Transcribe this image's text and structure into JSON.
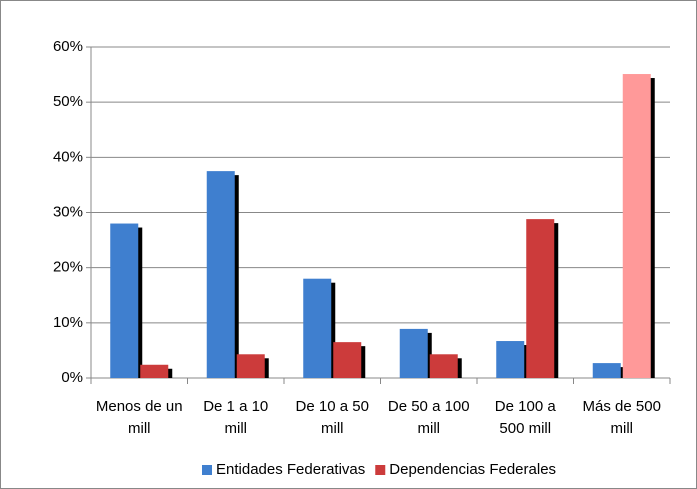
{
  "chart_data": {
    "type": "bar",
    "categories": [
      "Menos de un mill",
      "De 1 a 10 mill",
      "De 10 a 50 mill",
      "De 50 a 100 mill",
      "De 100 a 500 mill",
      "Más de 500 mill"
    ],
    "series": [
      {
        "name": "Entidades Federativas",
        "color": "#3f7fcf",
        "values": [
          28,
          37.5,
          18,
          8.9,
          6.7,
          2.7
        ]
      },
      {
        "name": "Dependencias Federales",
        "color": "#cc3b3b",
        "colors": [
          "#cc3b3b",
          "#cc3b3b",
          "#cc3b3b",
          "#cc3b3b",
          "#cc3b3b",
          "#ff9999"
        ],
        "values": [
          2.4,
          4.3,
          6.5,
          4.3,
          28.8,
          55.1
        ]
      }
    ],
    "ylim": [
      0,
      60
    ],
    "yticks": [
      {
        "value": 0,
        "label": "0%"
      },
      {
        "value": 10,
        "label": "10%"
      },
      {
        "value": 20,
        "label": "20%"
      },
      {
        "value": 30,
        "label": "30%"
      },
      {
        "value": 40,
        "label": "40%"
      },
      {
        "value": 50,
        "label": "50%"
      },
      {
        "value": 60,
        "label": "60%"
      }
    ],
    "grid": true,
    "legend": "bottom"
  }
}
